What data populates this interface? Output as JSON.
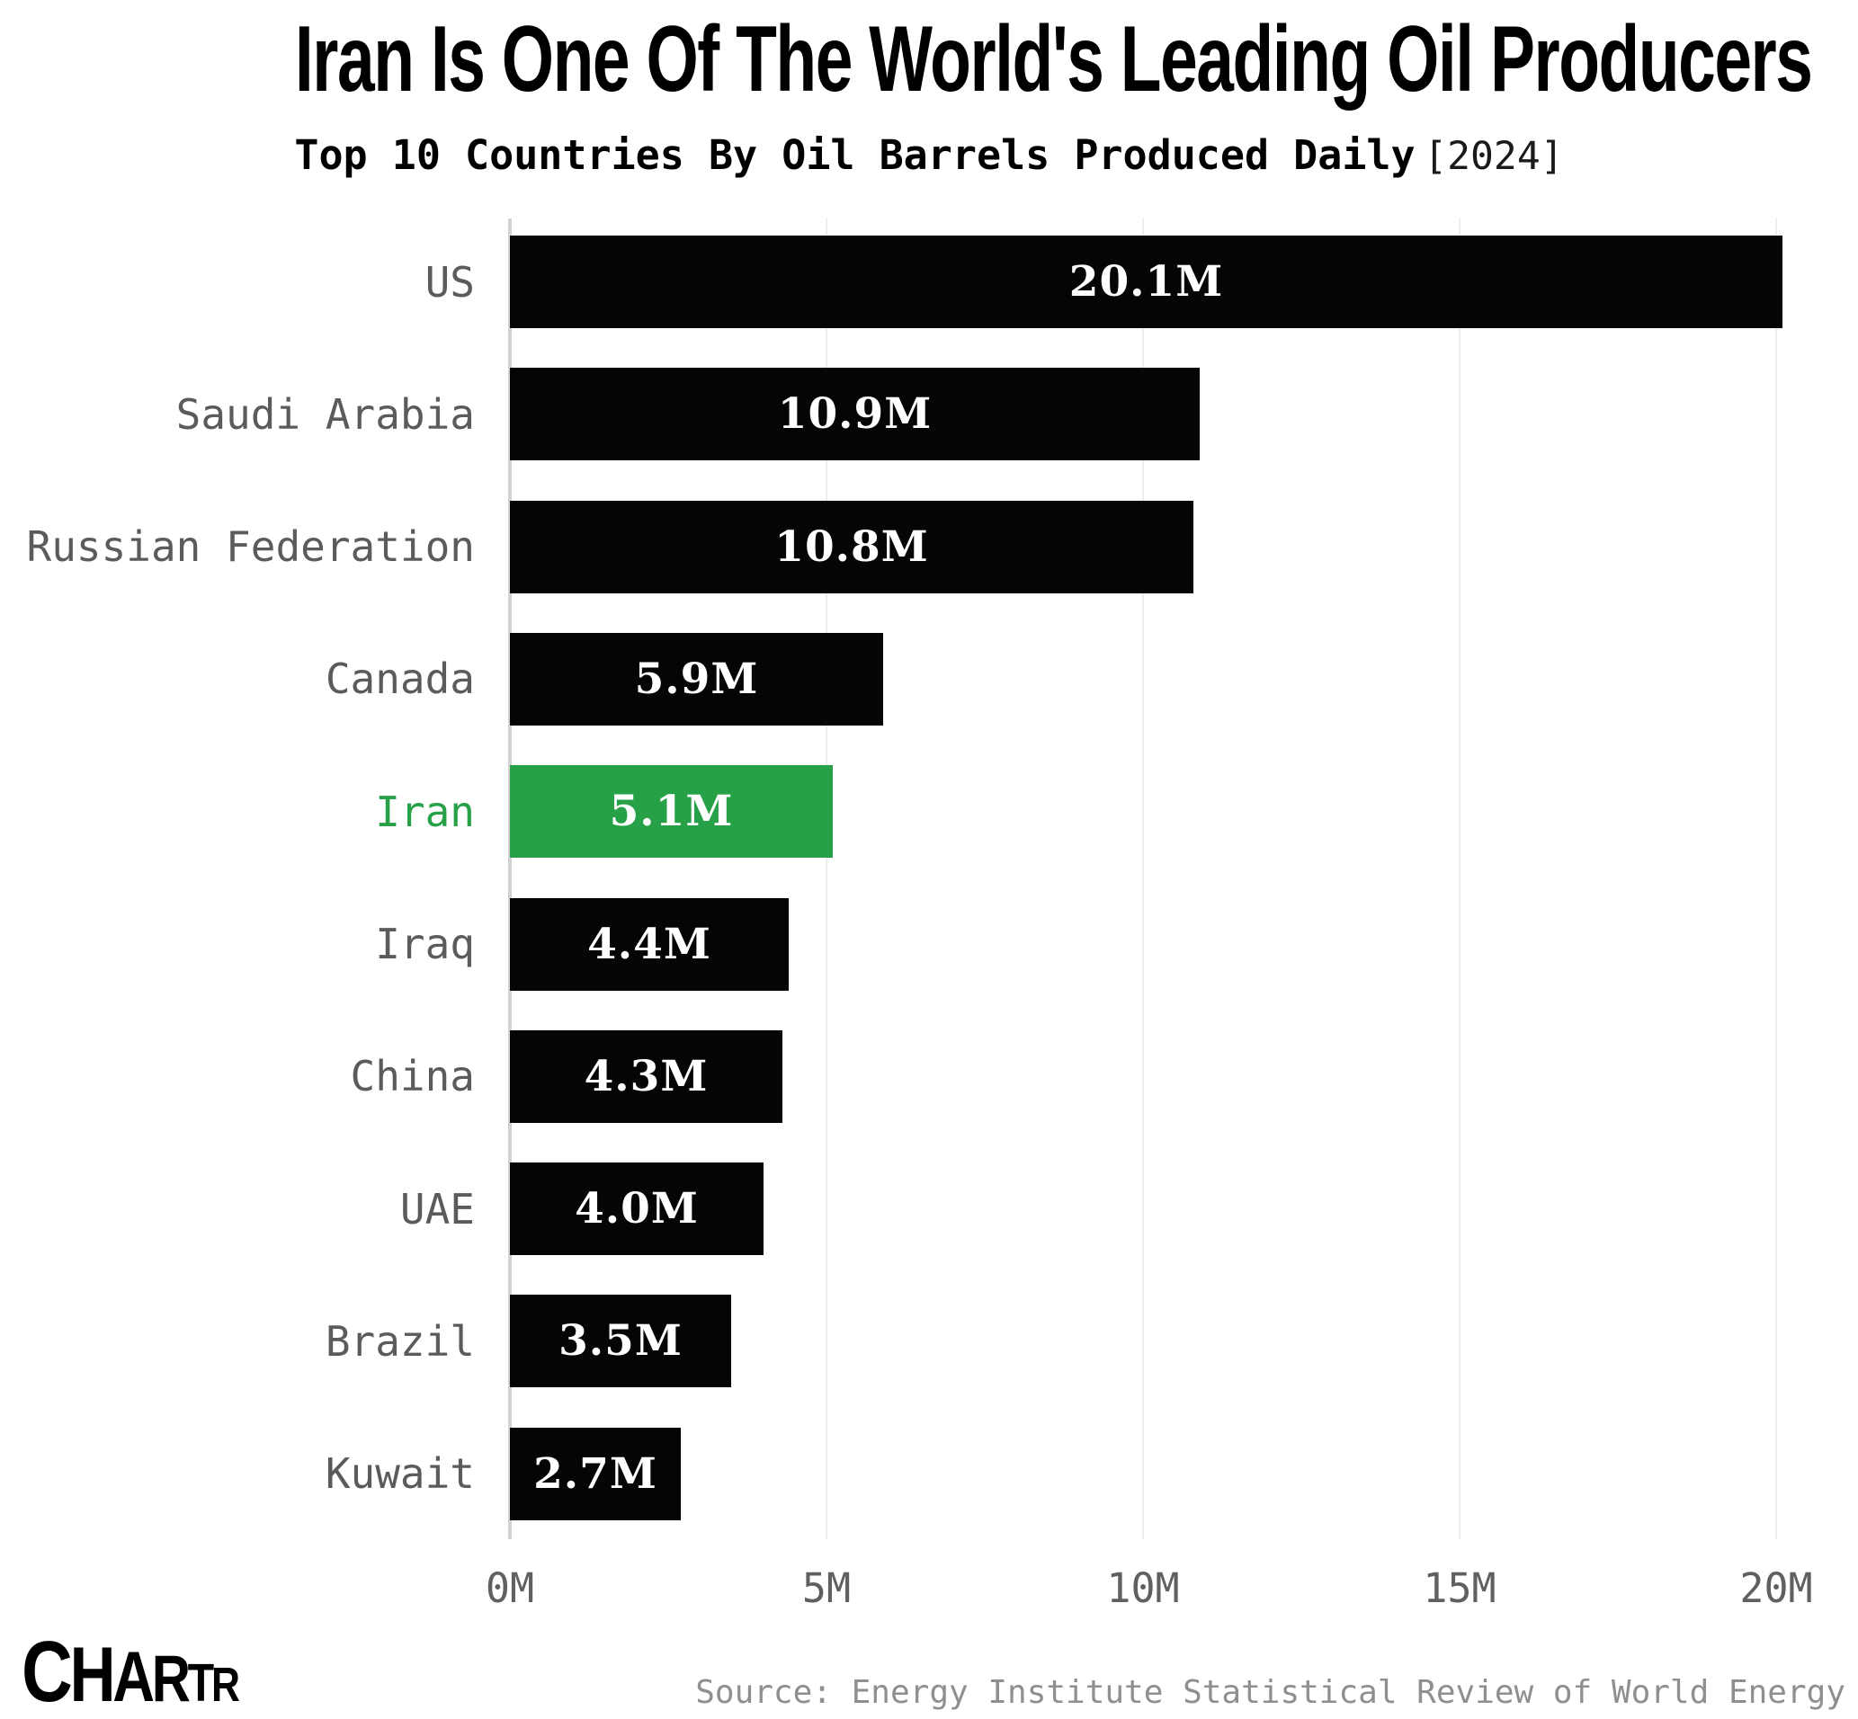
{
  "header": {
    "title": "Iran Is One Of The World's Leading Oil Producers",
    "subtitle": "Top 10 Countries By Oil Barrels Produced Daily",
    "year_tag": "[2024]"
  },
  "chart_data": {
    "type": "bar",
    "orientation": "horizontal",
    "title": "Top 10 Countries By Oil Barrels Produced Daily [2024]",
    "categories": [
      "US",
      "Saudi Arabia",
      "Russian Federation",
      "Canada",
      "Iran",
      "Iraq",
      "China",
      "UAE",
      "Brazil",
      "Kuwait"
    ],
    "values": [
      20.1,
      10.9,
      10.8,
      5.9,
      5.1,
      4.4,
      4.3,
      4.0,
      3.5,
      2.7
    ],
    "value_labels": [
      "20.1M",
      "10.9M",
      "10.8M",
      "5.9M",
      "5.1M",
      "4.4M",
      "4.3M",
      "4.0M",
      "3.5M",
      "2.7M"
    ],
    "units": "M barrels per day",
    "highlight_category": "Iran",
    "x_tick_labels": [
      "0M",
      "5M",
      "10M",
      "15M",
      "20M"
    ],
    "x_tick_values": [
      0,
      5,
      10,
      15,
      20
    ],
    "xlim": [
      0,
      20.5
    ],
    "grid": "vertical",
    "legend": "none",
    "colors": {
      "bar": "#050505",
      "highlight": "#26A147",
      "category_label": "#5b5b5b",
      "highlight_label": "#26A147",
      "value_text": "#ffffff",
      "gridline": "#ededed",
      "axis_line": "#d2d2d2"
    }
  },
  "footer": {
    "logo_text": "CHARTR",
    "logo_letters": [
      "C",
      "H",
      "A",
      "R",
      "T",
      "R"
    ],
    "source": "Source: Energy Institute Statistical Review of World Energy"
  }
}
